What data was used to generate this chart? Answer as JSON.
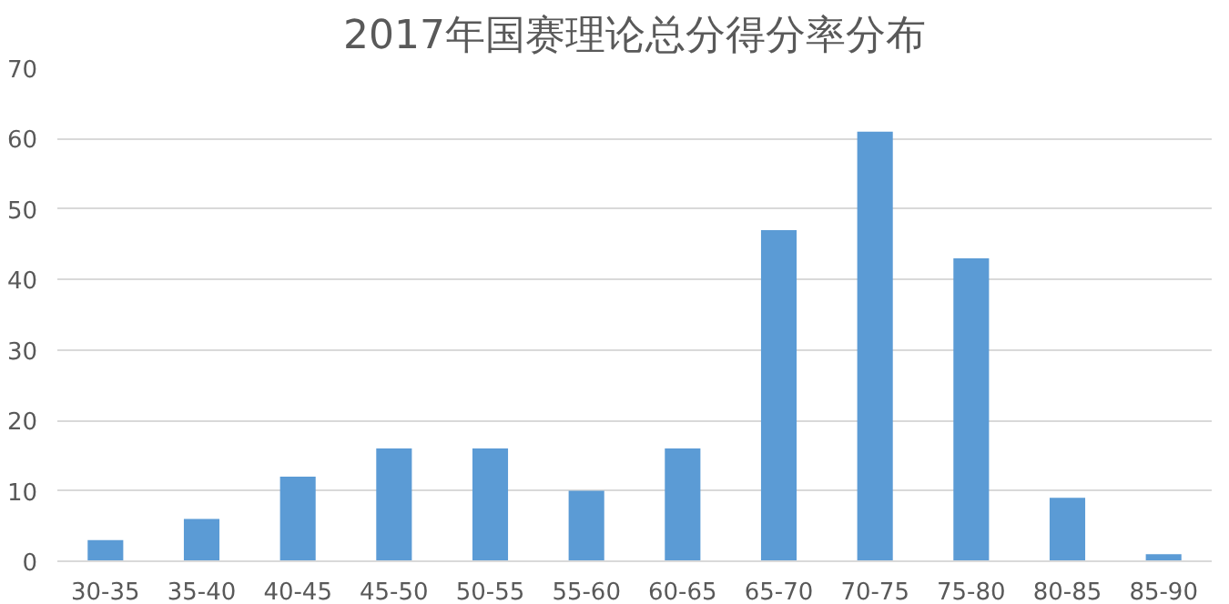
{
  "chart_data": {
    "type": "bar",
    "title": "2017年国赛理论总分得分率分布",
    "categories": [
      "30-35",
      "35-40",
      "40-45",
      "45-50",
      "50-55",
      "55-60",
      "60-65",
      "65-70",
      "70-75",
      "75-80",
      "80-85",
      "85-90"
    ],
    "values": [
      3,
      6,
      12,
      16,
      16,
      10,
      16,
      47,
      61,
      43,
      9,
      1
    ],
    "color": "#5b9bd5",
    "ylim": [
      0,
      70
    ],
    "yticks": [
      0,
      10,
      20,
      30,
      40,
      50,
      60,
      70
    ],
    "grid": "y"
  }
}
